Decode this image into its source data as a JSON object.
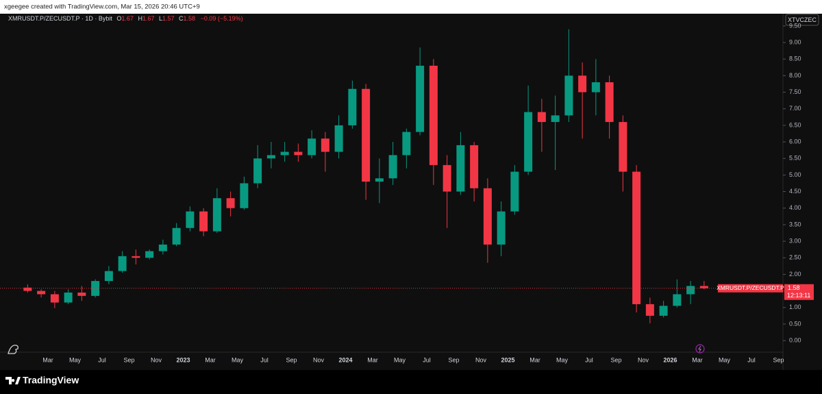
{
  "header": {
    "credit": "xgeegee created with TradingView.com, Mar 15, 2026 20:46 UTC+9"
  },
  "legend": {
    "symbol": "XMRUSDT.P/ZECUSDT.P · 1D · Bybit",
    "o_key": "O",
    "o": "1.67",
    "h_key": "H",
    "h": "1.67",
    "l_key": "L",
    "l": "1.57",
    "c_key": "C",
    "c": "1.58",
    "change": "−0.09 (−5.19%)"
  },
  "compare_button": "XTVCZEC",
  "price_tag": {
    "symbol": "XMRUSDT.P/ZECUSDT.P",
    "price": "1.58",
    "countdown": "12:13:11"
  },
  "footer": {
    "brand": "TradingView"
  },
  "chart_data": {
    "type": "candlestick",
    "categories": [
      null,
      null,
      "Mar",
      null,
      "May",
      null,
      "Jul",
      null,
      "Sep",
      null,
      "Nov",
      null,
      "2023",
      null,
      "Mar",
      null,
      "May",
      null,
      "Jul",
      null,
      "Sep",
      null,
      "Nov",
      null,
      "2024",
      null,
      "Mar",
      null,
      "May",
      null,
      "Jul",
      null,
      "Sep",
      null,
      "Nov",
      null,
      "2025",
      null,
      "Mar",
      null,
      "May",
      null,
      "Jul",
      null,
      "Sep",
      null,
      "Nov",
      null,
      "2026",
      null,
      "Mar",
      null,
      "May",
      null,
      "Jul",
      null,
      "Sep"
    ],
    "open": [
      1.6,
      1.5,
      1.4,
      1.15,
      1.45,
      1.35,
      1.8,
      2.1,
      2.55,
      2.5,
      2.7,
      2.9,
      3.4,
      3.9,
      3.3,
      4.3,
      4.0,
      4.75,
      5.5,
      5.6,
      5.7,
      5.6,
      6.1,
      5.7,
      6.5,
      7.6,
      4.8,
      4.9,
      5.6,
      6.3,
      8.3,
      5.3,
      4.5,
      5.9,
      4.6,
      2.9,
      3.9,
      5.1,
      6.9,
      6.6,
      6.8,
      8.0,
      7.5,
      7.8,
      6.6,
      5.1,
      1.1,
      0.75,
      1.05,
      1.4,
      1.65,
      null,
      null,
      null,
      null,
      null,
      null
    ],
    "high": [
      1.7,
      1.55,
      1.5,
      1.55,
      1.65,
      1.85,
      2.25,
      2.7,
      2.75,
      2.75,
      3.05,
      3.55,
      4.05,
      4.0,
      4.6,
      4.5,
      4.95,
      5.9,
      6.0,
      6.0,
      5.95,
      6.35,
      6.3,
      6.8,
      7.85,
      7.75,
      5.5,
      6.0,
      6.4,
      8.85,
      8.5,
      5.6,
      6.3,
      6.0,
      4.9,
      4.2,
      5.3,
      7.7,
      7.3,
      7.4,
      9.4,
      8.4,
      8.5,
      8.0,
      6.8,
      5.3,
      1.3,
      1.2,
      1.85,
      1.8,
      1.8,
      null,
      null,
      null,
      null,
      null,
      null
    ],
    "low": [
      1.45,
      1.3,
      0.98,
      1.1,
      1.2,
      1.3,
      1.7,
      2.05,
      2.3,
      2.45,
      2.6,
      2.85,
      3.3,
      3.15,
      3.25,
      3.75,
      3.95,
      4.6,
      5.2,
      5.4,
      5.4,
      5.5,
      5.1,
      5.5,
      6.4,
      4.25,
      4.15,
      4.7,
      5.2,
      6.2,
      4.7,
      3.4,
      4.4,
      4.2,
      2.35,
      2.55,
      3.8,
      5.0,
      5.7,
      5.15,
      6.6,
      6.1,
      6.8,
      6.1,
      4.5,
      0.85,
      0.52,
      0.7,
      1.0,
      1.1,
      1.55,
      null,
      null,
      null,
      null,
      null,
      null
    ],
    "close": [
      1.5,
      1.4,
      1.15,
      1.45,
      1.35,
      1.8,
      2.1,
      2.55,
      2.5,
      2.7,
      2.9,
      3.4,
      3.9,
      3.3,
      4.3,
      4.0,
      4.75,
      5.5,
      5.6,
      5.7,
      5.6,
      6.1,
      5.7,
      6.5,
      7.6,
      4.8,
      4.9,
      5.6,
      6.3,
      8.3,
      5.3,
      4.5,
      5.9,
      4.6,
      2.9,
      3.9,
      5.1,
      6.9,
      6.6,
      6.8,
      8.0,
      7.5,
      7.8,
      6.6,
      5.1,
      1.1,
      0.75,
      1.05,
      1.4,
      1.65,
      1.58,
      null,
      null,
      null,
      null,
      null,
      null
    ],
    "up_color": "#089981",
    "down_color": "#f23645",
    "ylim": [
      -0.35,
      9.87
    ],
    "yticks": [
      {
        "value": 0,
        "label": "0.00"
      },
      {
        "value": 0.5,
        "label": "0.50"
      },
      {
        "value": 1,
        "label": "1.00"
      },
      {
        "value": 1.5,
        "label": "1.50"
      },
      {
        "value": 2,
        "label": "2.00"
      },
      {
        "value": 2.5,
        "label": "2.50"
      },
      {
        "value": 3,
        "label": "3.00"
      },
      {
        "value": 3.5,
        "label": "3.50"
      },
      {
        "value": 4,
        "label": "4.00"
      },
      {
        "value": 4.5,
        "label": "4.50"
      },
      {
        "value": 5,
        "label": "5.00"
      },
      {
        "value": 5.5,
        "label": "5.50"
      },
      {
        "value": 6,
        "label": "6.00"
      },
      {
        "value": 6.5,
        "label": "6.50"
      },
      {
        "value": 7,
        "label": "7.00"
      },
      {
        "value": 7.5,
        "label": "7.50"
      },
      {
        "value": 8,
        "label": "8.00"
      },
      {
        "value": 8.5,
        "label": "8.50"
      },
      {
        "value": 9,
        "label": "9.00"
      },
      {
        "value": 9.5,
        "label": "9.50"
      }
    ],
    "grid": false
  }
}
